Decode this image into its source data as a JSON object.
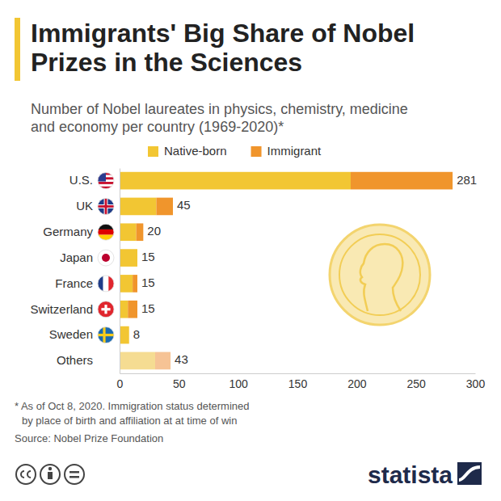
{
  "chart_data": {
    "type": "bar",
    "orientation": "horizontal",
    "stacked": true,
    "grid": false,
    "legend": "top",
    "title": "Immigrants' Big Share of Nobel Prizes in the Sciences",
    "subtitle": "Number of Nobel laureates in physics, chemistry, medicine and economy per country (1969-2020)*",
    "categories": [
      "U.S.",
      "UK",
      "Germany",
      "Japan",
      "France",
      "Switzerland",
      "Sweden",
      "Others"
    ],
    "series": [
      {
        "name": "Native-born",
        "color": "#f2c633",
        "colors": [
          "#f2c633",
          "#f2c633",
          "#f2c633",
          "#f2c633",
          "#f2c633",
          "#f2c633",
          "#f2c633",
          "#f5dc92"
        ],
        "values": [
          195,
          31,
          14,
          15,
          11,
          7,
          8,
          30
        ]
      },
      {
        "name": "Immigrant",
        "color": "#f0952c",
        "colors": [
          "#f0952c",
          "#f0952c",
          "#f0952c",
          "#f0952c",
          "#f0952c",
          "#f0952c",
          "#f0952c",
          "#f6c395"
        ],
        "values": [
          86,
          14,
          6,
          0,
          4,
          8,
          0,
          13
        ]
      }
    ],
    "totals": [
      281,
      45,
      20,
      15,
      15,
      15,
      8,
      43
    ],
    "xlim": [
      0,
      300
    ],
    "xticks": [
      0,
      50,
      100,
      150,
      200,
      250,
      300
    ],
    "notes": [
      "* As of Oct 8, 2020. Immigration status determined",
      "by place of birth and affiliation at at time of win"
    ],
    "source": "Source: Nobel Prize Foundation",
    "logo": "statista"
  }
}
